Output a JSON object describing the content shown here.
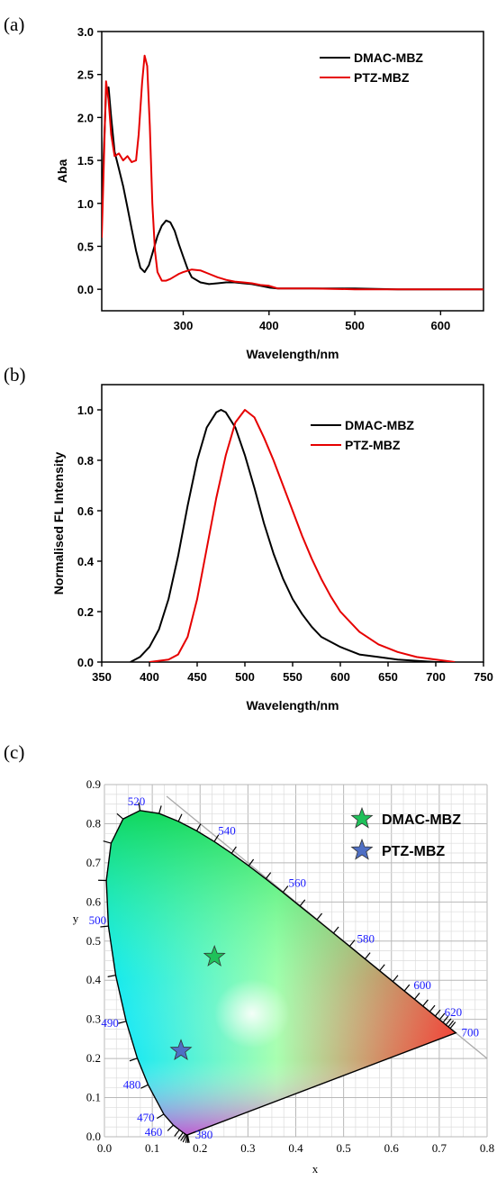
{
  "chart_data": [
    {
      "panel_label": "(a)",
      "type": "line",
      "xlabel": "Wavelength/nm",
      "ylabel": "Aba",
      "xlim": [
        205,
        650
      ],
      "ylim": [
        -0.25,
        3.0
      ],
      "xticks": [
        300,
        400,
        500,
        600
      ],
      "yticks": [
        0.0,
        0.5,
        1.0,
        1.5,
        2.0,
        2.5,
        3.0
      ],
      "ytick_labels": [
        "0.0",
        "0.5",
        "1.0",
        "1.5",
        "2.0",
        "2.5",
        "3.0"
      ],
      "legend": "top-right",
      "series": [
        {
          "name": "DMAC-MBZ",
          "color": "#000000",
          "x": [
            205,
            207,
            210,
            213,
            216,
            220,
            225,
            230,
            235,
            240,
            245,
            250,
            255,
            260,
            265,
            270,
            275,
            280,
            285,
            290,
            295,
            300,
            305,
            310,
            320,
            330,
            340,
            350,
            360,
            370,
            380,
            390,
            400,
            410,
            450,
            500,
            550,
            600,
            650
          ],
          "y": [
            0.9,
            1.5,
            2.3,
            2.35,
            2.0,
            1.6,
            1.4,
            1.2,
            0.95,
            0.7,
            0.45,
            0.25,
            0.2,
            0.28,
            0.45,
            0.62,
            0.74,
            0.8,
            0.78,
            0.68,
            0.52,
            0.38,
            0.24,
            0.14,
            0.08,
            0.06,
            0.07,
            0.08,
            0.08,
            0.07,
            0.06,
            0.04,
            0.02,
            0.01,
            0.01,
            0.01,
            0.0,
            0.0,
            0.0
          ]
        },
        {
          "name": "PTZ-MBZ",
          "color": "#e60000",
          "x": [
            205,
            207,
            210,
            213,
            216,
            220,
            225,
            230,
            235,
            240,
            245,
            248,
            252,
            255,
            258,
            261,
            264,
            267,
            270,
            275,
            280,
            285,
            290,
            295,
            300,
            310,
            320,
            330,
            340,
            350,
            360,
            370,
            380,
            390,
            400,
            410,
            450,
            500,
            550,
            600,
            650
          ],
          "y": [
            0.6,
            1.3,
            2.42,
            2.2,
            1.8,
            1.55,
            1.58,
            1.5,
            1.55,
            1.48,
            1.5,
            1.8,
            2.4,
            2.72,
            2.6,
            1.9,
            1.0,
            0.45,
            0.2,
            0.1,
            0.1,
            0.12,
            0.15,
            0.18,
            0.2,
            0.23,
            0.22,
            0.18,
            0.14,
            0.11,
            0.09,
            0.08,
            0.07,
            0.05,
            0.04,
            0.01,
            0.01,
            0.0,
            0.0,
            0.0,
            0.0
          ]
        }
      ]
    },
    {
      "panel_label": "(b)",
      "type": "line",
      "xlabel": "Wavelength/nm",
      "ylabel": "Normalised FL Intensity",
      "xlim": [
        350,
        750
      ],
      "ylim": [
        0.0,
        1.1
      ],
      "xticks": [
        350,
        400,
        450,
        500,
        550,
        600,
        650,
        700,
        750
      ],
      "yticks": [
        0.0,
        0.2,
        0.4,
        0.6,
        0.8,
        1.0
      ],
      "ytick_labels": [
        "0.0",
        "0.2",
        "0.4",
        "0.6",
        "0.8",
        "1.0"
      ],
      "legend": "top-right",
      "series": [
        {
          "name": "DMAC-MBZ",
          "color": "#000000",
          "x": [
            380,
            390,
            400,
            410,
            420,
            430,
            440,
            450,
            460,
            470,
            475,
            480,
            490,
            500,
            510,
            520,
            530,
            540,
            550,
            560,
            570,
            580,
            590,
            600,
            620,
            640,
            660,
            680,
            700,
            720
          ],
          "y": [
            0.0,
            0.02,
            0.06,
            0.13,
            0.25,
            0.42,
            0.62,
            0.8,
            0.93,
            0.99,
            1.0,
            0.99,
            0.93,
            0.82,
            0.69,
            0.55,
            0.43,
            0.33,
            0.25,
            0.19,
            0.14,
            0.1,
            0.08,
            0.06,
            0.03,
            0.02,
            0.01,
            0.005,
            0.0,
            0.0
          ]
        },
        {
          "name": "PTZ-MBZ",
          "color": "#e60000",
          "x": [
            400,
            420,
            430,
            440,
            450,
            460,
            470,
            480,
            490,
            500,
            510,
            520,
            530,
            540,
            550,
            560,
            570,
            580,
            590,
            600,
            620,
            640,
            660,
            680,
            700,
            720
          ],
          "y": [
            0.0,
            0.01,
            0.03,
            0.1,
            0.25,
            0.45,
            0.65,
            0.82,
            0.95,
            1.0,
            0.97,
            0.89,
            0.8,
            0.7,
            0.6,
            0.5,
            0.41,
            0.33,
            0.26,
            0.2,
            0.12,
            0.07,
            0.04,
            0.02,
            0.01,
            0.0
          ]
        }
      ]
    },
    {
      "panel_label": "(c)",
      "type": "scatter",
      "xlabel": "x",
      "ylabel": "y",
      "xlim": [
        0.0,
        0.8
      ],
      "ylim": [
        0.0,
        0.9
      ],
      "xticks": [
        0.0,
        0.1,
        0.2,
        0.3,
        0.4,
        0.5,
        0.6,
        0.7,
        0.8
      ],
      "xtick_labels": [
        "0.0",
        "0.1",
        "0.2",
        "0.3",
        "0.4",
        "0.5",
        "0.6",
        "0.7",
        "0.8"
      ],
      "yticks": [
        0.0,
        0.1,
        0.2,
        0.3,
        0.4,
        0.5,
        0.6,
        0.7,
        0.8,
        0.9
      ],
      "ytick_labels": [
        "0.0",
        "0.1",
        "0.2",
        "0.3",
        "0.4",
        "0.5",
        "0.6",
        "0.7",
        "0.8",
        "0.9"
      ],
      "grid": true,
      "legend": "top-right",
      "locus": {
        "x": [
          0.1741,
          0.1738,
          0.1733,
          0.1726,
          0.1714,
          0.1689,
          0.1644,
          0.1566,
          0.144,
          0.1241,
          0.0913,
          0.0687,
          0.0454,
          0.0235,
          0.0082,
          0.0039,
          0.0139,
          0.0389,
          0.0743,
          0.1142,
          0.1547,
          0.1929,
          0.2296,
          0.2658,
          0.3016,
          0.3373,
          0.3731,
          0.4087,
          0.4441,
          0.4788,
          0.5125,
          0.5448,
          0.5752,
          0.6029,
          0.627,
          0.6482,
          0.6658,
          0.6801,
          0.6915,
          0.7006,
          0.7079,
          0.714,
          0.719,
          0.723,
          0.726,
          0.7347
        ],
        "y": [
          0.005,
          0.0049,
          0.0048,
          0.0048,
          0.0051,
          0.0069,
          0.0109,
          0.0177,
          0.0297,
          0.0578,
          0.1327,
          0.2007,
          0.295,
          0.4127,
          0.5384,
          0.6548,
          0.7502,
          0.812,
          0.8338,
          0.8262,
          0.8059,
          0.7816,
          0.7543,
          0.7243,
          0.6923,
          0.6589,
          0.6245,
          0.5896,
          0.5547,
          0.5202,
          0.4866,
          0.4544,
          0.4242,
          0.3965,
          0.3725,
          0.3514,
          0.334,
          0.3197,
          0.3083,
          0.2993,
          0.292,
          0.2859,
          0.2809,
          0.277,
          0.274,
          0.2653
        ]
      },
      "wavelength_labels": [
        {
          "text": "380",
          "x": 0.1741,
          "y": 0.005
        },
        {
          "text": "460",
          "x": 0.144,
          "y": 0.0297
        },
        {
          "text": "470",
          "x": 0.1241,
          "y": 0.0578
        },
        {
          "text": "480",
          "x": 0.0913,
          "y": 0.1327
        },
        {
          "text": "490",
          "x": 0.0454,
          "y": 0.295
        },
        {
          "text": "500",
          "x": 0.0082,
          "y": 0.5384
        },
        {
          "text": "520",
          "x": 0.0743,
          "y": 0.8338
        },
        {
          "text": "540",
          "x": 0.2296,
          "y": 0.7543
        },
        {
          "text": "560",
          "x": 0.3731,
          "y": 0.6245
        },
        {
          "text": "580",
          "x": 0.5125,
          "y": 0.4866
        },
        {
          "text": "600",
          "x": 0.627,
          "y": 0.3725
        },
        {
          "text": "620",
          "x": 0.6915,
          "y": 0.3083
        },
        {
          "text": "700",
          "x": 0.7347,
          "y": 0.2653
        }
      ],
      "points": [
        {
          "name": "DMAC-MBZ",
          "x": 0.23,
          "y": 0.46,
          "color": "#1fc15a"
        },
        {
          "name": "PTZ-MBZ",
          "x": 0.16,
          "y": 0.22,
          "color": "#4f6fc4"
        }
      ]
    }
  ]
}
